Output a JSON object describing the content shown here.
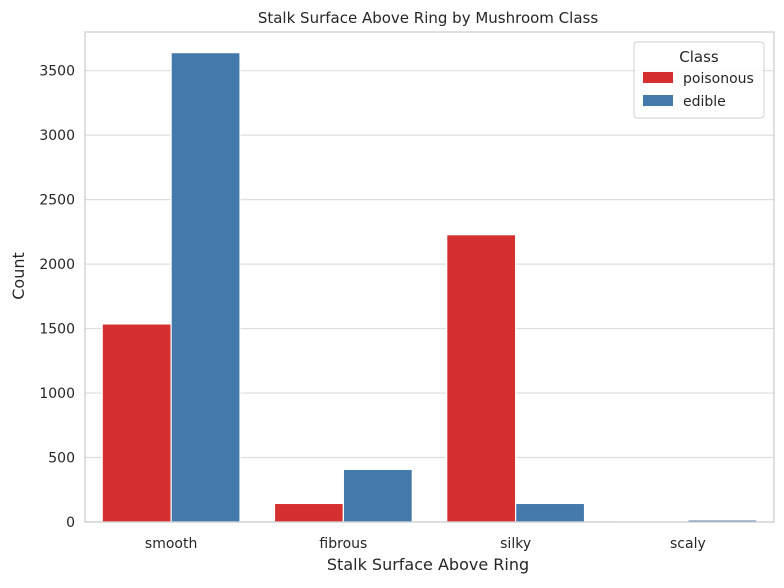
{
  "chart_data": {
    "type": "bar",
    "title": "Stalk Surface Above Ring by Mushroom Class",
    "xlabel": "Stalk Surface Above Ring",
    "ylabel": "Count",
    "categories": [
      "smooth",
      "fibrous",
      "silky",
      "scaly"
    ],
    "series": [
      {
        "name": "poisonous",
        "color": "#d62f2f",
        "values": [
          1536,
          144,
          2228,
          8
        ]
      },
      {
        "name": "edible",
        "color": "#4479ac",
        "values": [
          3640,
          408,
          144,
          16
        ]
      }
    ],
    "ylim": [
      0,
      3800
    ],
    "yticks": [
      0,
      500,
      1000,
      1500,
      2000,
      2500,
      3000,
      3500
    ],
    "grid": "horizontal",
    "legend": {
      "title": "Class",
      "placement": "top-right"
    }
  }
}
